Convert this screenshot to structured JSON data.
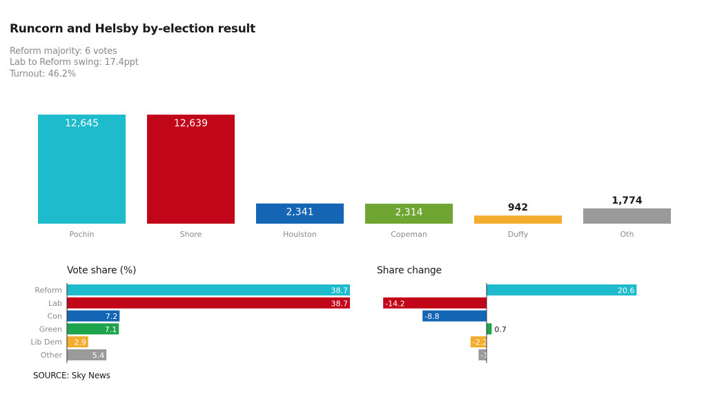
{
  "header": {
    "title": "Runcorn and Helsby by-election result",
    "lines": [
      "Reform majority: 6 votes",
      "Lab to Reform swing: 17.4ppt",
      "Turnout: 46.2%"
    ]
  },
  "source": "SOURCE: Sky News",
  "colors": {
    "reform": "#1dbbcc",
    "lab": "#c1061a",
    "con": "#1565b5",
    "green_copeman": "#6ea631",
    "green": "#1ca34b",
    "libdem": "#f4ac2c",
    "other": "#9a9a9a"
  },
  "chart_data": [
    {
      "type": "bar",
      "title": "",
      "categories": [
        "Pochin",
        "Shore",
        "Houlston",
        "Copeman",
        "Duffy",
        "Oth"
      ],
      "values": [
        12645,
        12639,
        2341,
        2314,
        942,
        1774
      ],
      "value_labels": [
        "12,645",
        "12,639",
        "2,341",
        "2,314",
        "942",
        "1,774"
      ],
      "colors": [
        "#1dbbcc",
        "#c1061a",
        "#1565b5",
        "#6ea631",
        "#f4ac2c",
        "#9a9a9a"
      ],
      "ylim": [
        0,
        12645
      ],
      "grid": false,
      "legend": "none"
    },
    {
      "type": "bar",
      "orientation": "horizontal",
      "title": "Vote share (%)",
      "categories": [
        "Reform",
        "Lab",
        "Con",
        "Green",
        "Lib Dem",
        "Other"
      ],
      "values": [
        38.7,
        38.7,
        7.2,
        7.1,
        2.9,
        5.4
      ],
      "value_labels": [
        "38.7",
        "38.7",
        "7.2",
        "7.1",
        "2.9",
        "5.4"
      ],
      "colors": [
        "#1dbbcc",
        "#c1061a",
        "#1565b5",
        "#1ca34b",
        "#f4ac2c",
        "#9a9a9a"
      ],
      "xlim": [
        0,
        38.7
      ],
      "grid": false,
      "legend": "none"
    },
    {
      "type": "bar",
      "orientation": "horizontal",
      "title": "Share change",
      "categories": [
        "Reform",
        "Lab",
        "Con",
        "Green",
        "Lib Dem",
        "Other"
      ],
      "values": [
        20.6,
        -14.2,
        -8.8,
        0.7,
        -2.2,
        -1.1
      ],
      "value_labels": [
        "20.6",
        "-14.2",
        "-8.8",
        "0.7",
        "-2.2",
        "-1.1"
      ],
      "colors": [
        "#1dbbcc",
        "#c1061a",
        "#1565b5",
        "#1ca34b",
        "#f4ac2c",
        "#9a9a9a"
      ],
      "xlim": [
        -14.2,
        20.6
      ],
      "grid": false,
      "legend": "none"
    }
  ]
}
